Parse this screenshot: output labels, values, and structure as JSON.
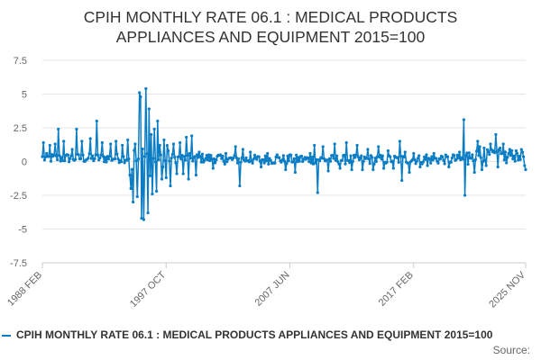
{
  "chart_data": {
    "type": "line",
    "title_lines": [
      "CPIH MONTHLY RATE 06.1 : MEDICAL PRODUCTS",
      "APPLIANCES AND EQUIPMENT 2015=100"
    ],
    "series": [
      {
        "name": "CPIH MONTHLY RATE 06.1 : MEDICAL PRODUCTS APPLIANCES AND EQUIPMENT 2015=100",
        "color": "#0b7dc4",
        "start": "1988 FEB",
        "end": "2025 NOV",
        "spikes": [
          {
            "date": "1988 MAR",
            "value": 1.4
          },
          {
            "date": "1988 SEP",
            "value": 1.2
          },
          {
            "date": "1989 FEB",
            "value": 1.3
          },
          {
            "date": "1989 MAY",
            "value": 2.4
          },
          {
            "date": "1989 OCT",
            "value": 1.5
          },
          {
            "date": "1990 JUN",
            "value": 0.9
          },
          {
            "date": "1990 OCT",
            "value": 2.4
          },
          {
            "date": "1991 MAR",
            "value": 1.5
          },
          {
            "date": "1991 NOV",
            "value": 1.7
          },
          {
            "date": "1992 MAY",
            "value": 3.0
          },
          {
            "date": "1992 OCT",
            "value": 1.4
          },
          {
            "date": "1993 JUN",
            "value": 1.3
          },
          {
            "date": "1993 NOV",
            "value": 1.5
          },
          {
            "date": "1994 MAY",
            "value": 1.2
          },
          {
            "date": "1994 OCT",
            "value": 1.6
          },
          {
            "date": "1994 DEC",
            "value": -1.0
          },
          {
            "date": "1995 JAN",
            "value": -2.0
          },
          {
            "date": "1995 MAR",
            "value": -3.0
          },
          {
            "date": "1995 MAY",
            "value": 1.3
          },
          {
            "date": "1995 JUL",
            "value": -2.6
          },
          {
            "date": "1995 SEP",
            "value": 5.1
          },
          {
            "date": "1995 OCT",
            "value": 4.8
          },
          {
            "date": "1995 NOV",
            "value": -4.2
          },
          {
            "date": "1996 JAN",
            "value": -4.3
          },
          {
            "date": "1996 MAR",
            "value": 5.4
          },
          {
            "date": "1996 MAY",
            "value": -3.8
          },
          {
            "date": "1996 JUN",
            "value": 3.9
          },
          {
            "date": "1996 AUG",
            "value": 2.0
          },
          {
            "date": "1996 SEP",
            "value": -2.4
          },
          {
            "date": "1996 NOV",
            "value": 2.4
          },
          {
            "date": "1997 JAN",
            "value": -2.2
          },
          {
            "date": "1997 FEB",
            "value": 3.0
          },
          {
            "date": "1997 APR",
            "value": 1.2
          },
          {
            "date": "1997 JUN",
            "value": -1.3
          },
          {
            "date": "1997 AUG",
            "value": 1.6
          },
          {
            "date": "1997 OCT",
            "value": -1.2
          },
          {
            "date": "1997 DEC",
            "value": 0.8
          },
          {
            "date": "1998 FEB",
            "value": -1.8
          },
          {
            "date": "1998 MAY",
            "value": 1.3
          },
          {
            "date": "1998 AUG",
            "value": -0.9
          },
          {
            "date": "1998 NOV",
            "value": 1.4
          },
          {
            "date": "1999 FEB",
            "value": -0.9
          },
          {
            "date": "1999 MAY",
            "value": 1.8
          },
          {
            "date": "1999 JUL",
            "value": -1.3
          },
          {
            "date": "1999 OCT",
            "value": 1.9
          },
          {
            "date": "2000 FEB",
            "value": -1.0
          },
          {
            "date": "2000 MAY",
            "value": 0.7
          },
          {
            "date": "2001 JUN",
            "value": -0.5
          },
          {
            "date": "2002 JUN",
            "value": 0.6
          },
          {
            "date": "2003 MAR",
            "value": 1.1
          },
          {
            "date": "2003 JUL",
            "value": -1.8
          },
          {
            "date": "2003 OCT",
            "value": 0.9
          },
          {
            "date": "2004 MAY",
            "value": 0.7
          },
          {
            "date": "2005 MAR",
            "value": -0.4
          },
          {
            "date": "2005 SEP",
            "value": 0.6
          },
          {
            "date": "2006 JUN",
            "value": 0.5
          },
          {
            "date": "2007 FEB",
            "value": -0.6
          },
          {
            "date": "2007 JUN",
            "value": 0.5
          },
          {
            "date": "2007 NOV",
            "value": -0.8
          },
          {
            "date": "2008 MAY",
            "value": 0.4
          },
          {
            "date": "2009 JAN",
            "value": 0.6
          },
          {
            "date": "2009 MAY",
            "value": 1.2
          },
          {
            "date": "2009 AUG",
            "value": -2.3
          },
          {
            "date": "2010 JAN",
            "value": 1.1
          },
          {
            "date": "2010 JUN",
            "value": -0.7
          },
          {
            "date": "2010 DEC",
            "value": 1.3
          },
          {
            "date": "2011 MAY",
            "value": -0.5
          },
          {
            "date": "2011 NOV",
            "value": 1.4
          },
          {
            "date": "2012 APR",
            "value": -0.6
          },
          {
            "date": "2012 SEP",
            "value": 1.2
          },
          {
            "date": "2013 FEB",
            "value": -0.6
          },
          {
            "date": "2013 JUL",
            "value": 0.9
          },
          {
            "date": "2013 DEC",
            "value": -0.6
          },
          {
            "date": "2014 MAY",
            "value": 1.1
          },
          {
            "date": "2014 OCT",
            "value": -0.5
          },
          {
            "date": "2015 FEB",
            "value": 0.8
          },
          {
            "date": "2015 JUL",
            "value": -0.5
          },
          {
            "date": "2016 JAN",
            "value": 1.5
          },
          {
            "date": "2016 MAR",
            "value": -1.4
          },
          {
            "date": "2016 JUN",
            "value": 0.7
          },
          {
            "date": "2016 OCT",
            "value": -0.8
          },
          {
            "date": "2017 FEB",
            "value": 0.6
          },
          {
            "date": "2017 AUG",
            "value": -0.4
          },
          {
            "date": "2018 FEB",
            "value": 0.5
          },
          {
            "date": "2018 MAR",
            "value": -0.3
          },
          {
            "date": "2018 SEP",
            "value": 0.6
          },
          {
            "date": "2019 APR",
            "value": 0.4
          },
          {
            "date": "2019 NOV",
            "value": -0.4
          },
          {
            "date": "2020 MAR",
            "value": 0.5
          },
          {
            "date": "2020 SEP",
            "value": 0.7
          },
          {
            "date": "2021 JAN",
            "value": 3.1
          },
          {
            "date": "2021 FEB",
            "value": -2.5
          },
          {
            "date": "2021 MAY",
            "value": -0.2
          },
          {
            "date": "2021 SEP",
            "value": 0.5
          },
          {
            "date": "2021 NOV",
            "value": -0.8
          },
          {
            "date": "2022 FEB",
            "value": 1.5
          },
          {
            "date": "2022 APR",
            "value": 1.1
          },
          {
            "date": "2022 JUN",
            "value": -0.6
          },
          {
            "date": "2022 AUG",
            "value": 1.0
          },
          {
            "date": "2022 OCT",
            "value": -0.3
          },
          {
            "date": "2023 FEB",
            "value": 1.3
          },
          {
            "date": "2023 MAY",
            "value": 0.8
          },
          {
            "date": "2023 JUL",
            "value": 2.0
          },
          {
            "date": "2023 SEP",
            "value": -0.4
          },
          {
            "date": "2023 NOV",
            "value": 1.0
          },
          {
            "date": "2024 FEB",
            "value": 1.3
          },
          {
            "date": "2024 MAY",
            "value": -0.1
          },
          {
            "date": "2024 AUG",
            "value": 0.9
          },
          {
            "date": "2024 NOV",
            "value": 0.2
          },
          {
            "date": "2025 FEB",
            "value": 0.8
          },
          {
            "date": "2025 MAY",
            "value": 0.4
          },
          {
            "date": "2025 AUG",
            "value": 0.7
          },
          {
            "date": "2025 OCT",
            "value": -0.3
          },
          {
            "date": "2025 NOV",
            "value": -0.6
          }
        ]
      }
    ],
    "x_tick_labels": [
      "1988 FEB",
      "1997 OCT",
      "2007 JUN",
      "2017 FEB",
      "2025 NOV"
    ],
    "y_tick_labels": [
      "7.5",
      "5",
      "2.5",
      "0",
      "-2.5",
      "-5",
      "-7.5"
    ],
    "y_ticks": [
      7.5,
      5,
      2.5,
      0,
      -2.5,
      -5,
      -7.5
    ],
    "ylim": [
      -7.5,
      7.5
    ],
    "grid": true,
    "legend_position": "bottom",
    "source_label": "Source:"
  }
}
